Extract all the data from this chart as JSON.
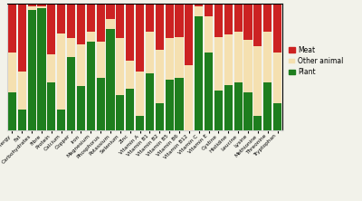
{
  "categories": [
    "Energy",
    "Fat",
    "Carbohydrates",
    "Fibre",
    "Protein",
    "Calcium",
    "Copper",
    "Iron",
    "Magnesium",
    "Phosphorus",
    "Potassium",
    "Selenium",
    "Zinc",
    "Vitamin A",
    "Vitamin B1",
    "Vitamin B2",
    "Vitamin B5",
    "Vitamin B6",
    "Vitamin B12",
    "Vitamin C",
    "Vitamin E",
    "Cystine",
    "Histidine",
    "Leucine",
    "Lysine",
    "Methionine",
    "Threonine",
    "Tryptophan"
  ],
  "plant": [
    0.3,
    0.17,
    0.95,
    0.97,
    0.38,
    0.17,
    0.58,
    0.35,
    0.7,
    0.42,
    0.8,
    0.28,
    0.33,
    0.12,
    0.45,
    0.22,
    0.4,
    0.42,
    0.0,
    0.9,
    0.62,
    0.32,
    0.36,
    0.38,
    0.3,
    0.12,
    0.38,
    0.22
  ],
  "other_animal": [
    0.32,
    0.3,
    0.03,
    0.01,
    0.22,
    0.6,
    0.15,
    0.33,
    0.08,
    0.28,
    0.08,
    0.45,
    0.22,
    0.35,
    0.33,
    0.42,
    0.33,
    0.32,
    0.52,
    0.08,
    0.28,
    0.42,
    0.4,
    0.4,
    0.42,
    0.55,
    0.4,
    0.4
  ],
  "meat": [
    0.38,
    0.53,
    0.02,
    0.02,
    0.4,
    0.23,
    0.27,
    0.32,
    0.22,
    0.3,
    0.12,
    0.27,
    0.45,
    0.53,
    0.22,
    0.36,
    0.27,
    0.26,
    0.48,
    0.02,
    0.1,
    0.26,
    0.24,
    0.22,
    0.28,
    0.33,
    0.22,
    0.38
  ],
  "color_plant": "#1e7e1e",
  "color_other": "#f5e0b0",
  "color_meat": "#cc2222",
  "background_color": "#f2f2ea",
  "fig_width": 4.0,
  "fig_height": 2.22,
  "dpi": 100
}
